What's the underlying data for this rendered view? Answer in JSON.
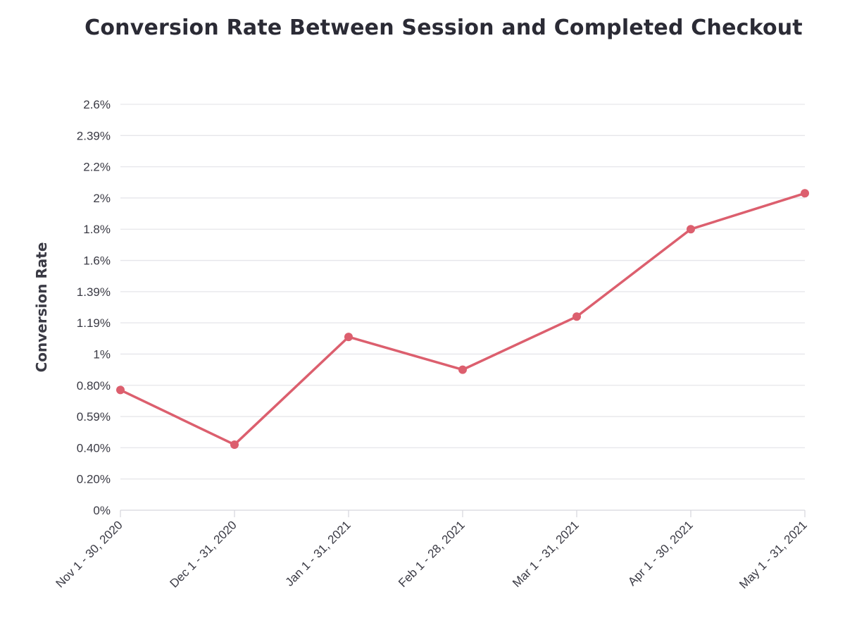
{
  "chart_data": {
    "type": "line",
    "title": "Conversion Rate Between Session and Completed Checkout",
    "xlabel": "",
    "ylabel": "Conversion Rate",
    "ylim": [
      0,
      2.6
    ],
    "grid": true,
    "y_tick_labels": [
      "0%",
      "0.20%",
      "0.40%",
      "0.59%",
      "0.80%",
      "1%",
      "1.19%",
      "1.39%",
      "1.6%",
      "1.8%",
      "2%",
      "2.2%",
      "2.39%",
      "2.6%"
    ],
    "categories": [
      "Nov 1 - 30, 2020",
      "Dec 1 - 31, 2020",
      "Jan 1 - 31, 2021",
      "Feb 1 - 28, 2021",
      "Mar 1 - 31, 2021",
      "Apr 1 - 30, 2021",
      "May 1 - 31, 2021"
    ],
    "series": [
      {
        "name": "Conversion Rate",
        "color": "#dc5f6e",
        "values": [
          0.77,
          0.42,
          1.11,
          0.9,
          1.24,
          1.8,
          2.03
        ]
      }
    ]
  }
}
